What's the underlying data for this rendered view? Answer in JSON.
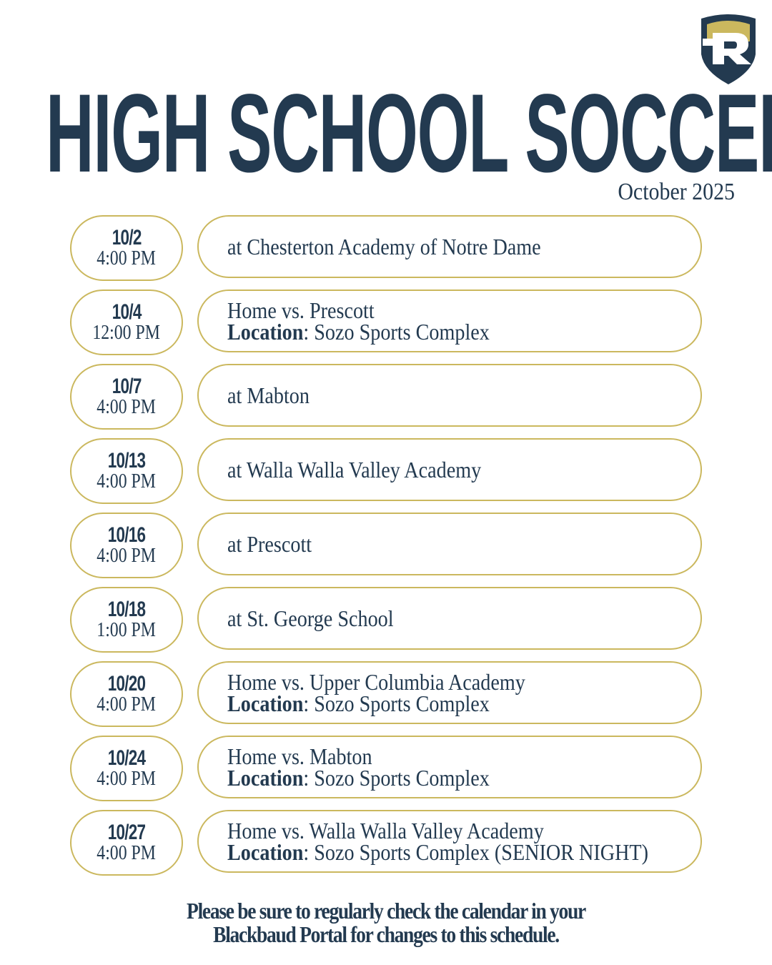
{
  "logo": {
    "letter": "R",
    "colors": {
      "navy": "#233a50",
      "gold": "#cbb85e"
    }
  },
  "title": "HIGH SCHOOL SOCCER",
  "subtitle": "October 2025",
  "location_label": "Location",
  "games": [
    {
      "date": "10/2",
      "time": "4:00 PM",
      "event": "at Chesterton Academy of Notre Dame",
      "location": ""
    },
    {
      "date": "10/4",
      "time": "12:00 PM",
      "event": "Home vs. Prescott",
      "location": "Sozo Sports Complex"
    },
    {
      "date": "10/7",
      "time": "4:00 PM",
      "event": "at Mabton",
      "location": ""
    },
    {
      "date": "10/13",
      "time": "4:00 PM",
      "event": "at Walla Walla Valley Academy",
      "location": ""
    },
    {
      "date": "10/16",
      "time": "4:00 PM",
      "event": "at Prescott",
      "location": ""
    },
    {
      "date": "10/18",
      "time": "1:00 PM",
      "event": "at St. George School",
      "location": ""
    },
    {
      "date": "10/20",
      "time": "4:00 PM",
      "event": "Home vs. Upper Columbia Academy",
      "location": "Sozo Sports Complex"
    },
    {
      "date": "10/24",
      "time": "4:00 PM",
      "event": "Home vs. Mabton",
      "location": "Sozo Sports Complex"
    },
    {
      "date": "10/27",
      "time": "4:00 PM",
      "event": "Home vs. Walla Walla Valley Academy",
      "location": "Sozo Sports Complex  (SENIOR NIGHT)"
    }
  ],
  "footer": {
    "line1": "Please be sure to regularly check the calendar in your",
    "line2": "Blackbaud Portal for changes to this schedule."
  }
}
